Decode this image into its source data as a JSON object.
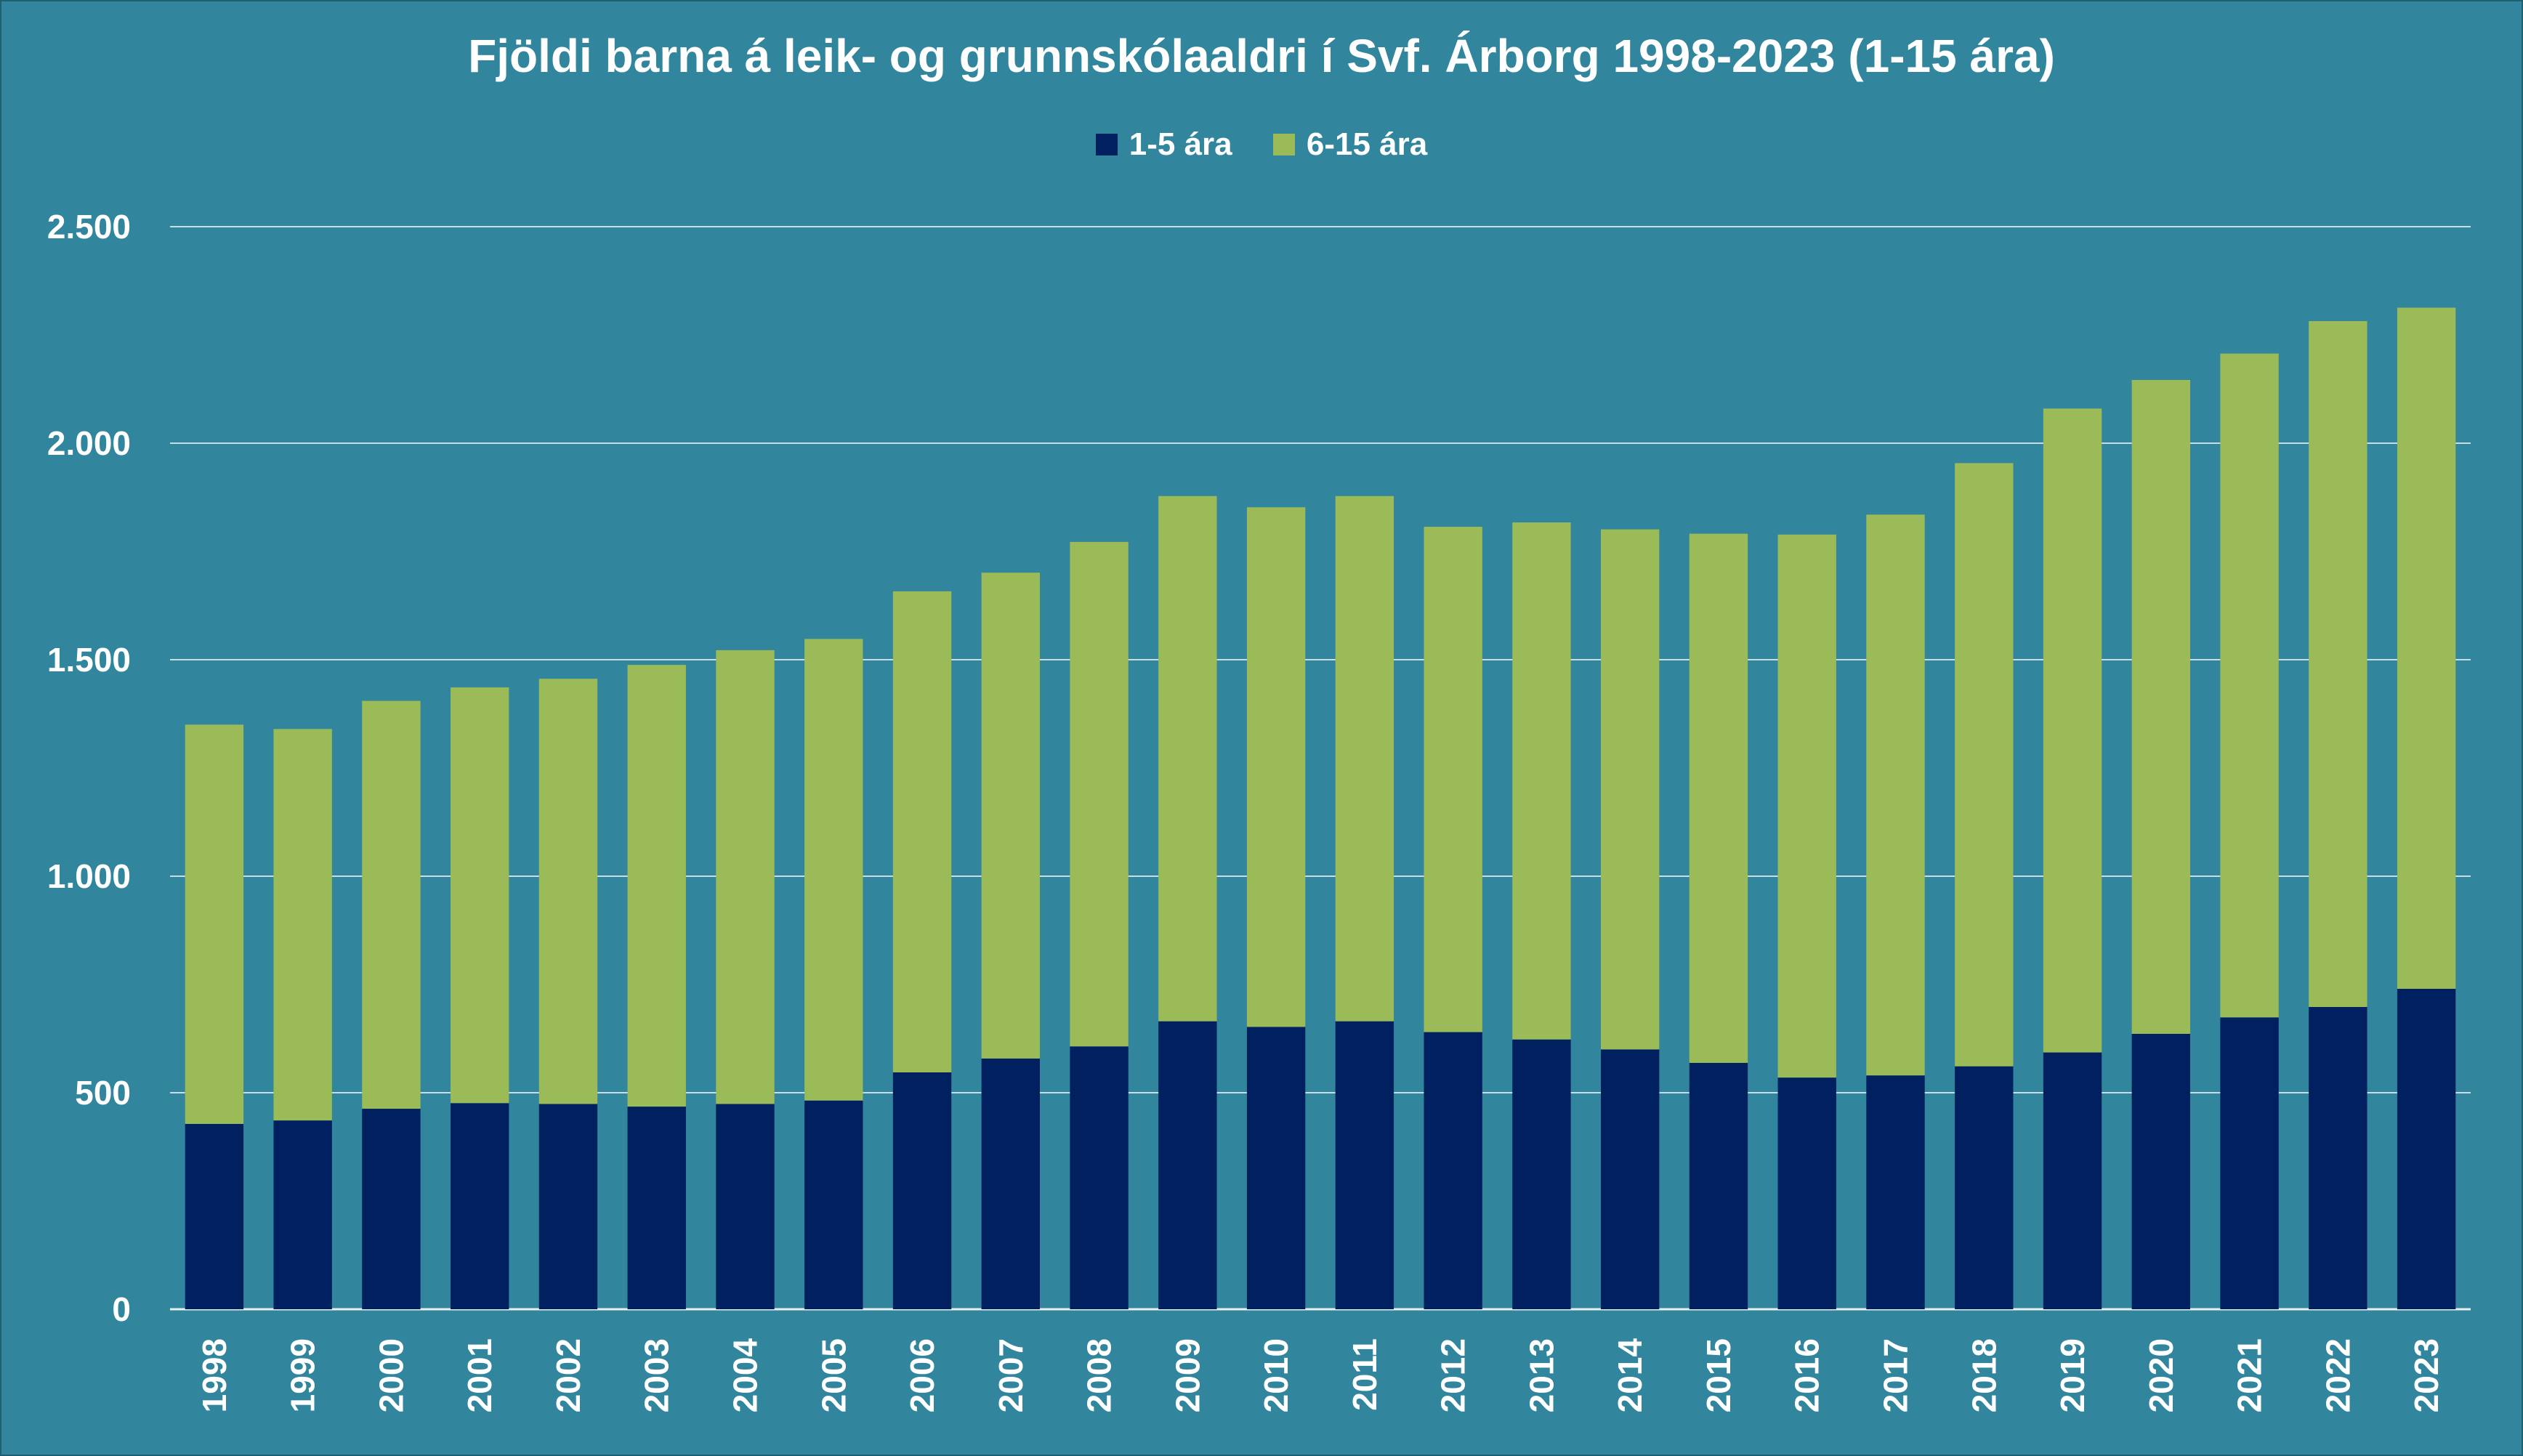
{
  "chart_data": {
    "type": "bar",
    "stacked": true,
    "title": "Fjöldi barna á leik- og grunnskólaaldri í Svf. Árborg 1998-2023 (1-15 ára)",
    "xlabel": "",
    "ylabel": "",
    "ylim": [
      0,
      2500
    ],
    "yticks": [
      0,
      500,
      1000,
      1500,
      2000,
      2500
    ],
    "ytick_labels": [
      "0",
      "500",
      "1.000",
      "1.500",
      "2.000",
      "2.500"
    ],
    "grid": true,
    "legend_position": "top",
    "categories": [
      "1998",
      "1999",
      "2000",
      "2001",
      "2002",
      "2003",
      "2004",
      "2005",
      "2006",
      "2007",
      "2008",
      "2009",
      "2010",
      "2011",
      "2012",
      "2013",
      "2014",
      "2015",
      "2016",
      "2017",
      "2018",
      "2019",
      "2020",
      "2021",
      "2022",
      "2023"
    ],
    "series": [
      {
        "name": "1-5 ára",
        "color": "#002060",
        "values": [
          428,
          436,
          463,
          476,
          474,
          468,
          474,
          482,
          547,
          579,
          607,
          665,
          652,
          665,
          640,
          623,
          600,
          569,
          535,
          540,
          561,
          593,
          636,
          674,
          698,
          740
        ]
      },
      {
        "name": "6-15 ára",
        "color": "#9bbb59",
        "values": [
          922,
          904,
          942,
          960,
          982,
          1020,
          1048,
          1066,
          1111,
          1122,
          1165,
          1213,
          1200,
          1213,
          1167,
          1194,
          1201,
          1222,
          1254,
          1295,
          1393,
          1487,
          1510,
          1533,
          1584,
          1573
        ]
      }
    ]
  }
}
